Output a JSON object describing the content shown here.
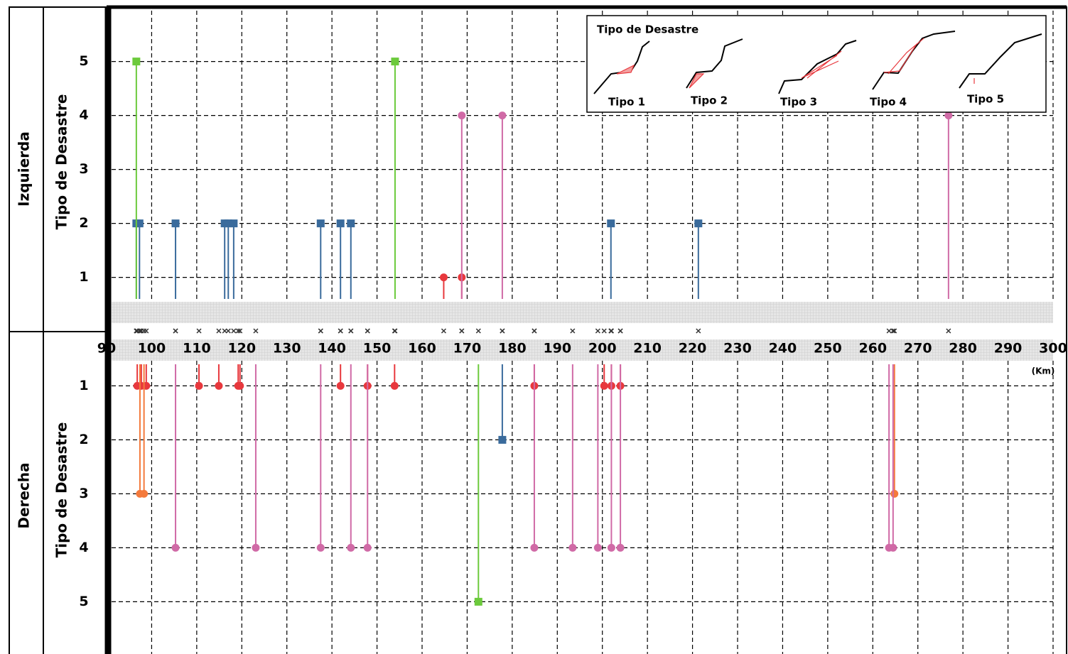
{
  "chart_data": [
    {
      "type": "stem",
      "title": "Izquierda",
      "ylabel": "Tipo de Desastre",
      "xlabel": "(Km)",
      "xlim": [
        90,
        300
      ],
      "xticks": [
        90,
        100,
        110,
        120,
        130,
        140,
        150,
        160,
        170,
        180,
        190,
        200,
        210,
        220,
        230,
        240,
        250,
        260,
        270,
        280,
        290,
        300
      ],
      "ylim": [
        0.6,
        5.9
      ],
      "yticks": [
        1,
        2,
        3,
        4,
        5
      ],
      "y_inverted": false,
      "grid": true,
      "legend_title": "Tipo de Desastre",
      "legend": "upper right",
      "series": [
        {
          "name": "Tipo 1",
          "color": "#e8383d",
          "marker": "circle",
          "x": [
            164.8,
            168.8
          ],
          "values": [
            1,
            1
          ]
        },
        {
          "name": "Tipo 2",
          "color": "#3a6b9c",
          "marker": "square",
          "x": [
            96.6,
            97.3,
            105.3,
            116.2,
            117,
            118.2,
            137.5,
            141.9,
            144.2,
            201.9,
            221.3
          ],
          "values": [
            2,
            2,
            2,
            2,
            2,
            2,
            2,
            2,
            2,
            2,
            2
          ]
        },
        {
          "name": "Tipo 3",
          "color": "#f47a3c",
          "marker": "circle",
          "x": [],
          "values": []
        },
        {
          "name": "Tipo 4",
          "color": "#d06aa6",
          "marker": "circle",
          "x": [
            168.8,
            177.8,
            276.8
          ],
          "values": [
            4,
            4,
            4
          ]
        },
        {
          "name": "Tipo 5",
          "color": "#6cca3c",
          "marker": "square",
          "x": [
            96.6,
            154
          ],
          "values": [
            5,
            5
          ]
        }
      ]
    },
    {
      "type": "stem",
      "title": "Derecha",
      "ylabel": "Tipo de Desastre",
      "ylim": [
        0.6,
        5.9
      ],
      "yticks": [
        1,
        2,
        3,
        4,
        5
      ],
      "y_inverted": true,
      "grid": true,
      "series": [
        {
          "color": "#e8383d",
          "marker": "circle",
          "x": [
            96.8,
            97.7,
            98.8,
            110.5,
            114.9,
            119.2,
            119.6,
            141.9,
            147.9,
            153.9,
            184.9,
            200.4,
            202,
            204
          ],
          "values": [
            1,
            1,
            1,
            1,
            1,
            1,
            1,
            1,
            1,
            1,
            1,
            1,
            1,
            1
          ]
        },
        {
          "color": "#3a6b9c",
          "marker": "square",
          "x": [
            177.8
          ],
          "values": [
            2
          ]
        },
        {
          "color": "#f47a3c",
          "marker": "circle",
          "x": [
            97.4,
            98.3,
            264.8
          ],
          "values": [
            3,
            3,
            3
          ]
        },
        {
          "color": "#d06aa6",
          "marker": "circle",
          "x": [
            105.3,
            123.1,
            137.5,
            144.2,
            147.9,
            184.9,
            193.4,
            199,
            202,
            204,
            263.6,
            264.5
          ],
          "values": [
            4,
            4,
            4,
            4,
            4,
            4,
            4,
            4,
            4,
            4,
            4,
            4
          ]
        },
        {
          "color": "#6cca3c",
          "marker": "square",
          "x": [
            172.5
          ],
          "values": [
            5
          ]
        }
      ]
    }
  ]
}
